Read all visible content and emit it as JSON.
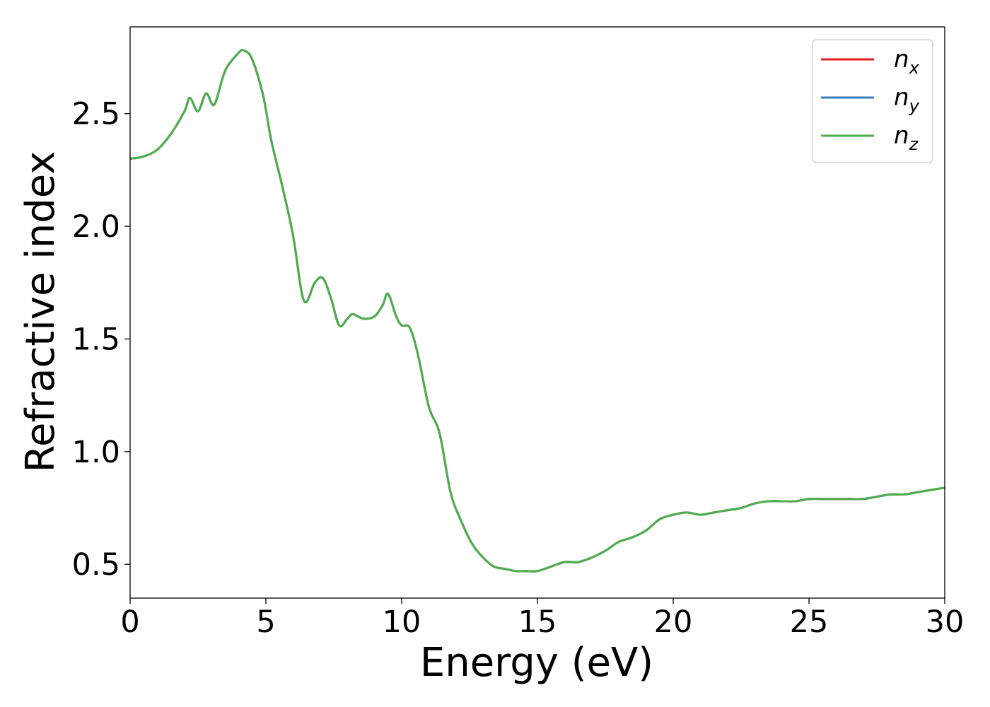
{
  "chart_data": {
    "type": "line",
    "title": "",
    "xlabel": "Energy (eV)",
    "ylabel": "Refractive index",
    "xlim": [
      0,
      30
    ],
    "ylim": [
      0.35,
      2.885
    ],
    "xticks": [
      0,
      5,
      10,
      15,
      20,
      25,
      30
    ],
    "xtick_labels": [
      "0",
      "5",
      "10",
      "15",
      "20",
      "25",
      "30"
    ],
    "yticks": [
      0.5,
      1.0,
      1.5,
      2.0,
      2.5
    ],
    "ytick_labels": [
      "0.5",
      "1.0",
      "1.5",
      "2.0",
      "2.5"
    ],
    "grid": false,
    "legend_position": "top-right",
    "x": [
      0,
      0.5,
      1.0,
      1.5,
      2.0,
      2.2,
      2.5,
      2.8,
      3.1,
      3.5,
      4.0,
      4.2,
      4.5,
      4.9,
      5.2,
      5.6,
      6.0,
      6.4,
      6.8,
      7.1,
      7.4,
      7.7,
      8.0,
      8.2,
      8.6,
      9.0,
      9.3,
      9.5,
      9.8,
      10.0,
      10.3,
      10.6,
      11.0,
      11.4,
      11.8,
      12.2,
      12.6,
      13.0,
      13.4,
      13.8,
      14.2,
      14.6,
      15.0,
      15.5,
      16.0,
      16.5,
      17.0,
      17.5,
      18.0,
      18.5,
      19.0,
      19.5,
      20.0,
      20.5,
      21.0,
      21.5,
      22.0,
      22.5,
      23.0,
      23.5,
      24.0,
      24.5,
      25.0,
      25.5,
      26.0,
      26.5,
      27.0,
      27.5,
      28.0,
      28.5,
      29.0,
      29.5,
      30.0
    ],
    "series": [
      {
        "name": "n_x",
        "label_base": "n",
        "label_sub": "x",
        "color": "#e41a1c",
        "values": [
          2.3,
          2.31,
          2.34,
          2.41,
          2.51,
          2.57,
          2.51,
          2.59,
          2.54,
          2.69,
          2.77,
          2.78,
          2.74,
          2.58,
          2.38,
          2.18,
          1.96,
          1.67,
          1.75,
          1.77,
          1.68,
          1.56,
          1.59,
          1.61,
          1.59,
          1.6,
          1.65,
          1.7,
          1.6,
          1.56,
          1.55,
          1.43,
          1.2,
          1.08,
          0.82,
          0.69,
          0.59,
          0.53,
          0.49,
          0.48,
          0.47,
          0.47,
          0.47,
          0.49,
          0.51,
          0.51,
          0.53,
          0.56,
          0.6,
          0.62,
          0.65,
          0.7,
          0.72,
          0.73,
          0.72,
          0.73,
          0.74,
          0.75,
          0.77,
          0.78,
          0.78,
          0.78,
          0.79,
          0.79,
          0.79,
          0.79,
          0.79,
          0.8,
          0.81,
          0.81,
          0.82,
          0.83,
          0.84
        ]
      },
      {
        "name": "n_y",
        "label_base": "n",
        "label_sub": "y",
        "color": "#377eb8",
        "values": [
          2.3,
          2.31,
          2.34,
          2.41,
          2.51,
          2.57,
          2.51,
          2.59,
          2.54,
          2.69,
          2.77,
          2.78,
          2.74,
          2.58,
          2.38,
          2.18,
          1.96,
          1.67,
          1.75,
          1.77,
          1.68,
          1.56,
          1.59,
          1.61,
          1.59,
          1.6,
          1.65,
          1.7,
          1.6,
          1.56,
          1.55,
          1.43,
          1.2,
          1.08,
          0.82,
          0.69,
          0.59,
          0.53,
          0.49,
          0.48,
          0.47,
          0.47,
          0.47,
          0.49,
          0.51,
          0.51,
          0.53,
          0.56,
          0.6,
          0.62,
          0.65,
          0.7,
          0.72,
          0.73,
          0.72,
          0.73,
          0.74,
          0.75,
          0.77,
          0.78,
          0.78,
          0.78,
          0.79,
          0.79,
          0.79,
          0.79,
          0.79,
          0.8,
          0.81,
          0.81,
          0.82,
          0.83,
          0.84
        ]
      },
      {
        "name": "n_z",
        "label_base": "n",
        "label_sub": "z",
        "color": "#4daf4a",
        "values": [
          2.3,
          2.31,
          2.34,
          2.41,
          2.51,
          2.57,
          2.51,
          2.59,
          2.54,
          2.69,
          2.77,
          2.78,
          2.74,
          2.58,
          2.38,
          2.18,
          1.96,
          1.67,
          1.75,
          1.77,
          1.68,
          1.56,
          1.59,
          1.61,
          1.59,
          1.6,
          1.65,
          1.7,
          1.6,
          1.56,
          1.55,
          1.43,
          1.2,
          1.08,
          0.82,
          0.69,
          0.59,
          0.53,
          0.49,
          0.48,
          0.47,
          0.47,
          0.47,
          0.49,
          0.51,
          0.51,
          0.53,
          0.56,
          0.6,
          0.62,
          0.65,
          0.7,
          0.72,
          0.73,
          0.72,
          0.73,
          0.74,
          0.75,
          0.77,
          0.78,
          0.78,
          0.78,
          0.79,
          0.79,
          0.79,
          0.79,
          0.79,
          0.8,
          0.81,
          0.81,
          0.82,
          0.83,
          0.84
        ]
      }
    ]
  }
}
